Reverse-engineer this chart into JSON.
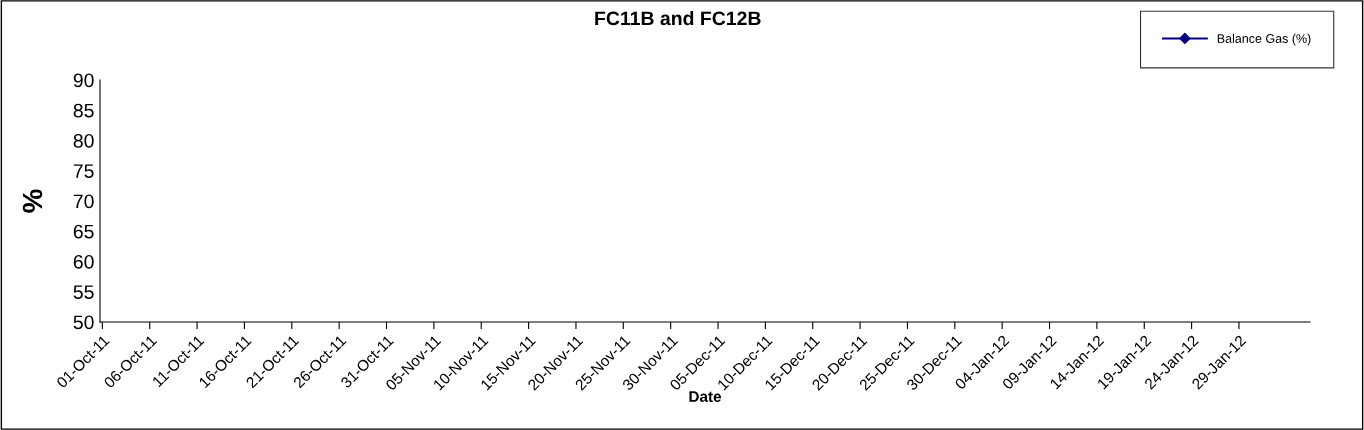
{
  "chart_data": {
    "type": "line",
    "title": "FC11B and FC12B",
    "xlabel": "Date",
    "ylabel": "%",
    "categories": [
      "01-Oct-11",
      "06-Oct-11",
      "11-Oct-11",
      "16-Oct-11",
      "21-Oct-11",
      "26-Oct-11",
      "31-Oct-11",
      "05-Nov-11",
      "10-Nov-11",
      "15-Nov-11",
      "20-Nov-11",
      "25-Nov-11",
      "30-Nov-11",
      "05-Dec-11",
      "10-Dec-11",
      "15-Dec-11",
      "20-Dec-11",
      "25-Dec-11",
      "30-Dec-11",
      "04-Jan-12",
      "09-Jan-12",
      "14-Jan-12",
      "19-Jan-12",
      "24-Jan-12",
      "29-Jan-12"
    ],
    "series": [
      {
        "name": "Balance Gas (%)",
        "color": "#000080",
        "values": [
          null,
          null,
          null,
          null,
          null,
          null,
          null,
          null,
          null,
          null,
          null,
          null,
          null,
          null,
          null,
          null,
          null,
          null,
          null,
          null,
          null,
          null,
          null,
          null,
          null
        ]
      }
    ],
    "ylim": [
      50,
      90
    ],
    "yticks": [
      50,
      55,
      60,
      65,
      70,
      75,
      80,
      85,
      90
    ],
    "grid": false,
    "legend": "top right",
    "marker": "diamond",
    "line_style": "solid"
  }
}
